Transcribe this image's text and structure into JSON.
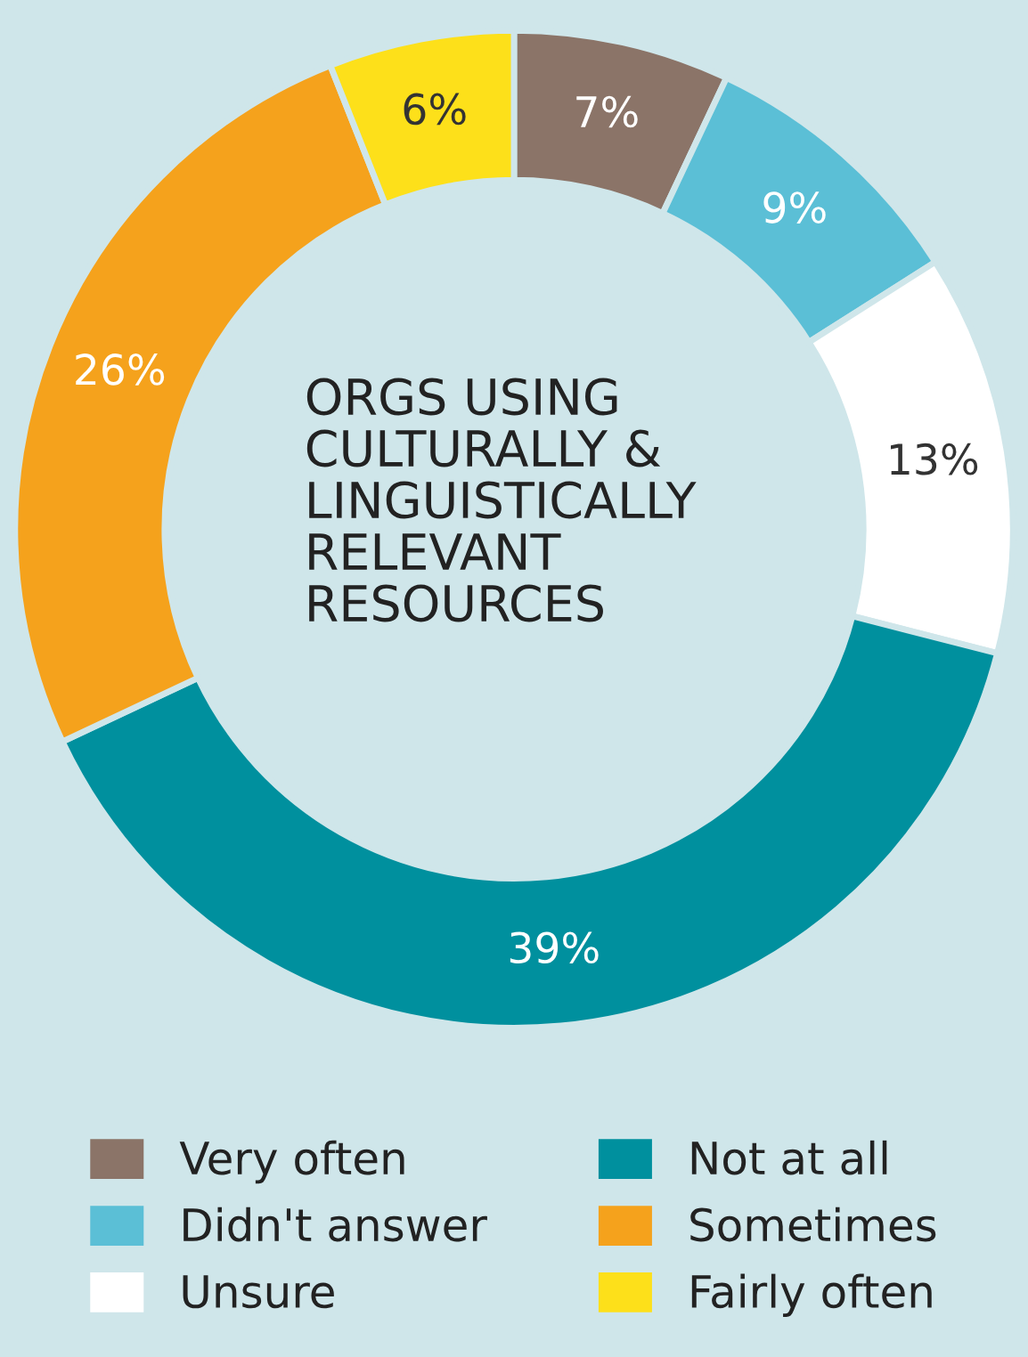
{
  "chart_data": {
    "type": "donut",
    "title": "ORGS USING CULTURALLY & LINGUISTICALLY RELEVANT RESOURCES",
    "categories": [
      "Very often",
      "Didn't answer",
      "Unsure",
      "Not at all",
      "Sometimes",
      "Fairly often"
    ],
    "values": [
      7,
      9,
      13,
      39,
      26,
      6
    ],
    "value_labels": [
      "7%",
      "9%",
      "13%",
      "39%",
      "26%",
      "6%"
    ],
    "colors": [
      "#8b7468",
      "#5bbfd6",
      "#ffffff",
      "#00909e",
      "#f5a21c",
      "#fde01a"
    ],
    "legend": "bottom"
  }
}
